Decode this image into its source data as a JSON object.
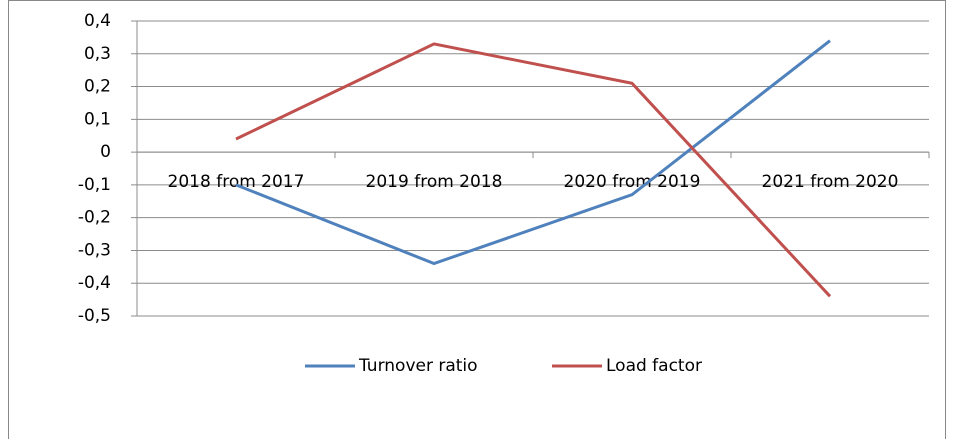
{
  "chart_data": {
    "type": "line",
    "categories": [
      "2018 from 2017",
      "2019 from 2018",
      "2020 from 2019",
      "2021 from 2020"
    ],
    "series": [
      {
        "name": "Turnover ratio",
        "color": "#4f81bd",
        "values": [
          -0.1,
          -0.34,
          -0.13,
          0.34
        ]
      },
      {
        "name": "Load factor",
        "color": "#c0504d",
        "values": [
          0.04,
          0.33,
          0.21,
          -0.44
        ]
      }
    ],
    "ylim": [
      -0.5,
      0.4
    ],
    "yticks": [
      {
        "value": 0.4,
        "label": "0,4"
      },
      {
        "value": 0.3,
        "label": "0,3"
      },
      {
        "value": 0.2,
        "label": "0,2"
      },
      {
        "value": 0.1,
        "label": "0,1"
      },
      0,
      {
        "value": -0.1,
        "label": "-0,1"
      },
      {
        "value": -0.2,
        "label": "-0,2"
      },
      {
        "value": -0.3,
        "label": "-0,3"
      },
      {
        "value": -0.4,
        "label": "-0,4"
      },
      {
        "value": -0.5,
        "label": "-0,5"
      }
    ],
    "grid": true,
    "legend": "bottom"
  }
}
